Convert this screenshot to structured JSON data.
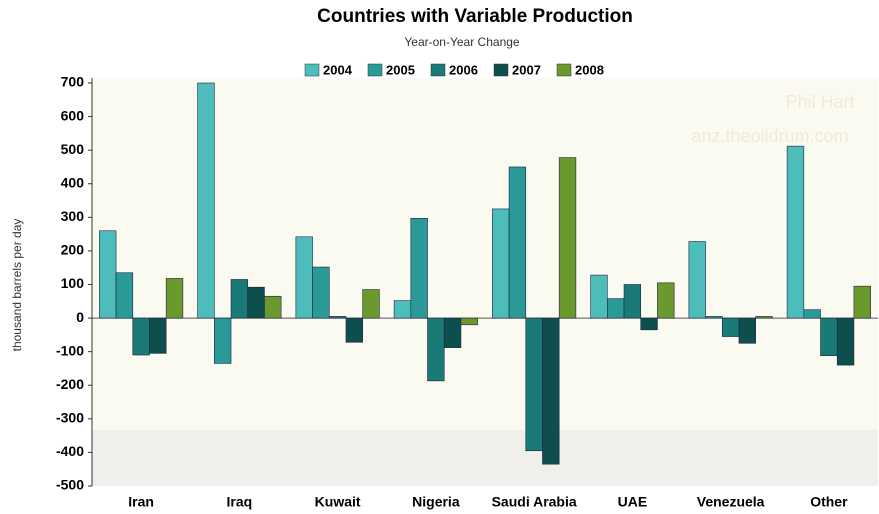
{
  "chart_data": {
    "type": "bar",
    "title": "Countries with Variable Production",
    "subtitle": "Year-on-Year Change",
    "y_label": "thousand barrels per day",
    "watermark": [
      "Phil Hart",
      "anz.theoildrum.com"
    ],
    "categories": [
      "Iran",
      "Iraq",
      "Kuwait",
      "Nigeria",
      "Saudi Arabia",
      "UAE",
      "Venezuela",
      "Other"
    ],
    "series": [
      {
        "name": "2004",
        "color": "#4dbdbb",
        "values": [
          260,
          700,
          242,
          52,
          325,
          128,
          228,
          512
        ]
      },
      {
        "name": "2005",
        "color": "#2a9a98",
        "values": [
          135,
          -135,
          152,
          297,
          450,
          58,
          5,
          25
        ]
      },
      {
        "name": "2006",
        "color": "#1a7a76",
        "values": [
          -110,
          115,
          5,
          -187,
          -395,
          100,
          -55,
          -112
        ]
      },
      {
        "name": "2007",
        "color": "#0d4f4c",
        "values": [
          -105,
          92,
          -72,
          -88,
          -435,
          -35,
          -75,
          -140
        ]
      },
      {
        "name": "2008",
        "color": "#6a9a2e",
        "values": [
          118,
          65,
          85,
          -20,
          478,
          105,
          5,
          95
        ]
      }
    ],
    "ylim": [
      -500,
      700
    ],
    "yticks": [
      -500,
      -400,
      -300,
      -200,
      -100,
      0,
      100,
      200,
      300,
      400,
      500,
      600,
      700
    ],
    "legend": "top"
  }
}
